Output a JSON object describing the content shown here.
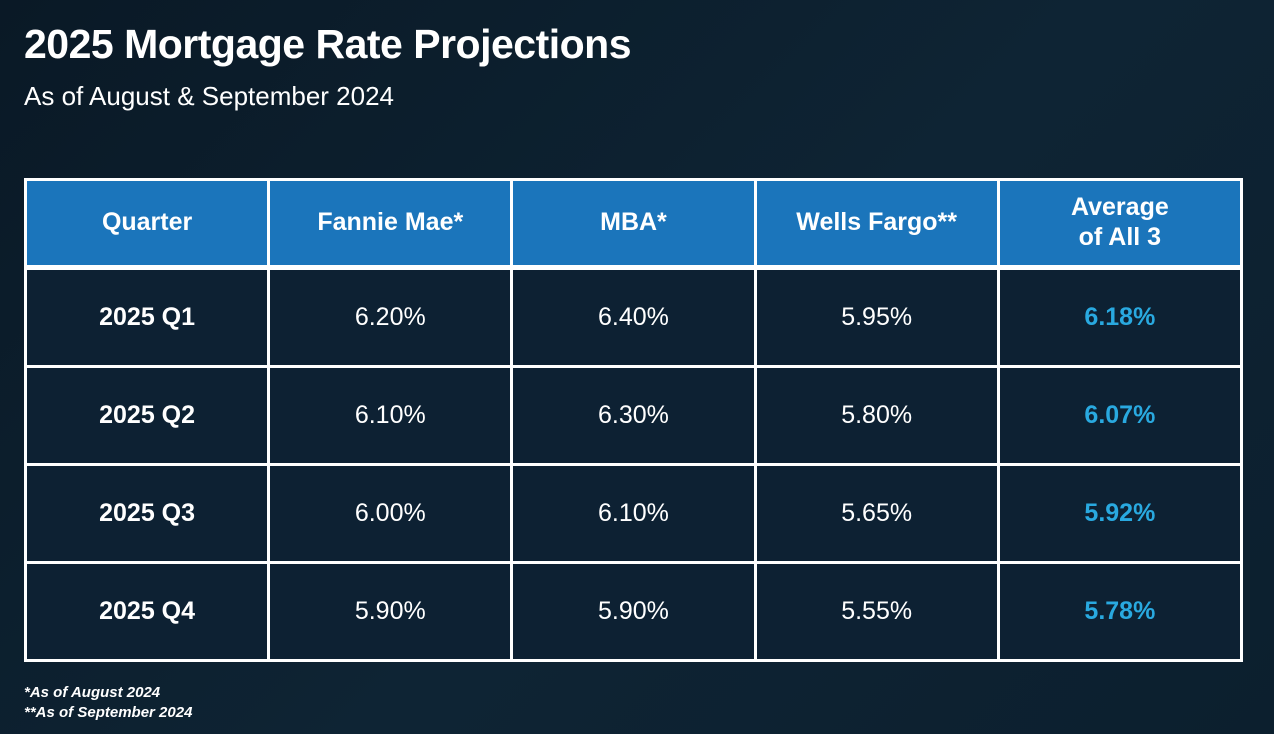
{
  "header": {
    "title": "2025 Mortgage Rate Projections",
    "subtitle": "As of August & September 2024"
  },
  "footnotes": [
    "*As of August 2024",
    "**As of September 2024"
  ],
  "colors": {
    "background": "#0c1f2e",
    "header_blue": "#1b75bb",
    "highlight_column_blue": "#2b85c6",
    "accent_text_blue": "#29a9e0",
    "border_white": "#ffffff",
    "cell_dark": "#0d2133"
  },
  "chart_data": {
    "type": "table",
    "title": "2025 Mortgage Rate Projections",
    "subtitle": "As of August & September 2024",
    "columns": [
      "Quarter",
      "Fannie Mae*",
      "MBA*",
      "Wells Fargo**",
      "Average of All 3"
    ],
    "rows": [
      [
        "2025 Q1",
        "6.20%",
        "6.40%",
        "5.95%",
        "6.18%"
      ],
      [
        "2025 Q2",
        "6.10%",
        "6.30%",
        "5.80%",
        "6.07%"
      ],
      [
        "2025 Q3",
        "6.00%",
        "6.10%",
        "5.65%",
        "5.92%"
      ],
      [
        "2025 Q4",
        "5.90%",
        "5.90%",
        "5.55%",
        "5.78%"
      ]
    ],
    "highlighted_column": "Wells Fargo**",
    "accent_column": "Average of All 3",
    "footnotes": [
      "*As of August 2024",
      "**As of September 2024"
    ],
    "legend_position": "none",
    "grid": "white-borders"
  }
}
